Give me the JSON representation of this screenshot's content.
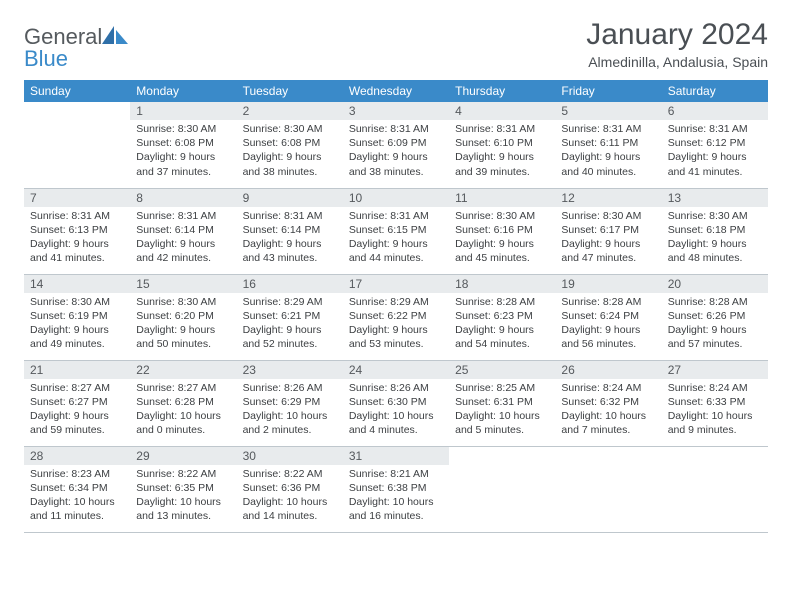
{
  "brand": {
    "name1": "General",
    "name2": "Blue"
  },
  "title": "January 2024",
  "location": "Almedinilla, Andalusia, Spain",
  "colors": {
    "header_bg": "#3a8ac9",
    "header_fg": "#ffffff",
    "daynum_bg": "#e8ebed",
    "text": "#3c3f42",
    "brand_gray": "#555a5e",
    "brand_blue": "#3a8ac9"
  },
  "weekdays": [
    "Sunday",
    "Monday",
    "Tuesday",
    "Wednesday",
    "Thursday",
    "Friday",
    "Saturday"
  ],
  "weeks": [
    [
      {
        "n": "",
        "sr": "",
        "ss": "",
        "dl": ""
      },
      {
        "n": "1",
        "sr": "Sunrise: 8:30 AM",
        "ss": "Sunset: 6:08 PM",
        "dl": "Daylight: 9 hours and 37 minutes."
      },
      {
        "n": "2",
        "sr": "Sunrise: 8:30 AM",
        "ss": "Sunset: 6:08 PM",
        "dl": "Daylight: 9 hours and 38 minutes."
      },
      {
        "n": "3",
        "sr": "Sunrise: 8:31 AM",
        "ss": "Sunset: 6:09 PM",
        "dl": "Daylight: 9 hours and 38 minutes."
      },
      {
        "n": "4",
        "sr": "Sunrise: 8:31 AM",
        "ss": "Sunset: 6:10 PM",
        "dl": "Daylight: 9 hours and 39 minutes."
      },
      {
        "n": "5",
        "sr": "Sunrise: 8:31 AM",
        "ss": "Sunset: 6:11 PM",
        "dl": "Daylight: 9 hours and 40 minutes."
      },
      {
        "n": "6",
        "sr": "Sunrise: 8:31 AM",
        "ss": "Sunset: 6:12 PM",
        "dl": "Daylight: 9 hours and 41 minutes."
      }
    ],
    [
      {
        "n": "7",
        "sr": "Sunrise: 8:31 AM",
        "ss": "Sunset: 6:13 PM",
        "dl": "Daylight: 9 hours and 41 minutes."
      },
      {
        "n": "8",
        "sr": "Sunrise: 8:31 AM",
        "ss": "Sunset: 6:14 PM",
        "dl": "Daylight: 9 hours and 42 minutes."
      },
      {
        "n": "9",
        "sr": "Sunrise: 8:31 AM",
        "ss": "Sunset: 6:14 PM",
        "dl": "Daylight: 9 hours and 43 minutes."
      },
      {
        "n": "10",
        "sr": "Sunrise: 8:31 AM",
        "ss": "Sunset: 6:15 PM",
        "dl": "Daylight: 9 hours and 44 minutes."
      },
      {
        "n": "11",
        "sr": "Sunrise: 8:30 AM",
        "ss": "Sunset: 6:16 PM",
        "dl": "Daylight: 9 hours and 45 minutes."
      },
      {
        "n": "12",
        "sr": "Sunrise: 8:30 AM",
        "ss": "Sunset: 6:17 PM",
        "dl": "Daylight: 9 hours and 47 minutes."
      },
      {
        "n": "13",
        "sr": "Sunrise: 8:30 AM",
        "ss": "Sunset: 6:18 PM",
        "dl": "Daylight: 9 hours and 48 minutes."
      }
    ],
    [
      {
        "n": "14",
        "sr": "Sunrise: 8:30 AM",
        "ss": "Sunset: 6:19 PM",
        "dl": "Daylight: 9 hours and 49 minutes."
      },
      {
        "n": "15",
        "sr": "Sunrise: 8:30 AM",
        "ss": "Sunset: 6:20 PM",
        "dl": "Daylight: 9 hours and 50 minutes."
      },
      {
        "n": "16",
        "sr": "Sunrise: 8:29 AM",
        "ss": "Sunset: 6:21 PM",
        "dl": "Daylight: 9 hours and 52 minutes."
      },
      {
        "n": "17",
        "sr": "Sunrise: 8:29 AM",
        "ss": "Sunset: 6:22 PM",
        "dl": "Daylight: 9 hours and 53 minutes."
      },
      {
        "n": "18",
        "sr": "Sunrise: 8:28 AM",
        "ss": "Sunset: 6:23 PM",
        "dl": "Daylight: 9 hours and 54 minutes."
      },
      {
        "n": "19",
        "sr": "Sunrise: 8:28 AM",
        "ss": "Sunset: 6:24 PM",
        "dl": "Daylight: 9 hours and 56 minutes."
      },
      {
        "n": "20",
        "sr": "Sunrise: 8:28 AM",
        "ss": "Sunset: 6:26 PM",
        "dl": "Daylight: 9 hours and 57 minutes."
      }
    ],
    [
      {
        "n": "21",
        "sr": "Sunrise: 8:27 AM",
        "ss": "Sunset: 6:27 PM",
        "dl": "Daylight: 9 hours and 59 minutes."
      },
      {
        "n": "22",
        "sr": "Sunrise: 8:27 AM",
        "ss": "Sunset: 6:28 PM",
        "dl": "Daylight: 10 hours and 0 minutes."
      },
      {
        "n": "23",
        "sr": "Sunrise: 8:26 AM",
        "ss": "Sunset: 6:29 PM",
        "dl": "Daylight: 10 hours and 2 minutes."
      },
      {
        "n": "24",
        "sr": "Sunrise: 8:26 AM",
        "ss": "Sunset: 6:30 PM",
        "dl": "Daylight: 10 hours and 4 minutes."
      },
      {
        "n": "25",
        "sr": "Sunrise: 8:25 AM",
        "ss": "Sunset: 6:31 PM",
        "dl": "Daylight: 10 hours and 5 minutes."
      },
      {
        "n": "26",
        "sr": "Sunrise: 8:24 AM",
        "ss": "Sunset: 6:32 PM",
        "dl": "Daylight: 10 hours and 7 minutes."
      },
      {
        "n": "27",
        "sr": "Sunrise: 8:24 AM",
        "ss": "Sunset: 6:33 PM",
        "dl": "Daylight: 10 hours and 9 minutes."
      }
    ],
    [
      {
        "n": "28",
        "sr": "Sunrise: 8:23 AM",
        "ss": "Sunset: 6:34 PM",
        "dl": "Daylight: 10 hours and 11 minutes."
      },
      {
        "n": "29",
        "sr": "Sunrise: 8:22 AM",
        "ss": "Sunset: 6:35 PM",
        "dl": "Daylight: 10 hours and 13 minutes."
      },
      {
        "n": "30",
        "sr": "Sunrise: 8:22 AM",
        "ss": "Sunset: 6:36 PM",
        "dl": "Daylight: 10 hours and 14 minutes."
      },
      {
        "n": "31",
        "sr": "Sunrise: 8:21 AM",
        "ss": "Sunset: 6:38 PM",
        "dl": "Daylight: 10 hours and 16 minutes."
      },
      {
        "n": "",
        "sr": "",
        "ss": "",
        "dl": ""
      },
      {
        "n": "",
        "sr": "",
        "ss": "",
        "dl": ""
      },
      {
        "n": "",
        "sr": "",
        "ss": "",
        "dl": ""
      }
    ]
  ]
}
